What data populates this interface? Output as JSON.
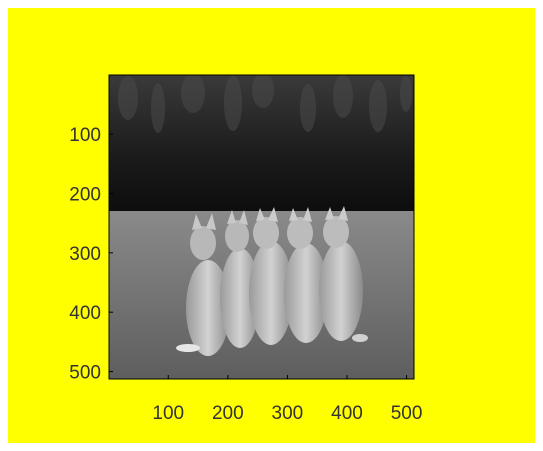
{
  "figure": {
    "background_color": "#ffff00",
    "image_content_icon": "grayscale-photo-cats-sitting-on-grass-icon"
  },
  "axes": {
    "x_ticks": [
      "100",
      "200",
      "300",
      "400",
      "500"
    ],
    "y_ticks": [
      "100",
      "200",
      "300",
      "400",
      "500"
    ],
    "x_tick_values": [
      100,
      200,
      300,
      400,
      500
    ],
    "y_tick_values": [
      100,
      200,
      300,
      400,
      500
    ],
    "xlim": [
      0.5,
      512.5
    ],
    "ylim": [
      0.5,
      512.5
    ],
    "y_direction": "reverse",
    "grid": false,
    "tick_label_color": "#333333",
    "axis_color": "#000000"
  }
}
